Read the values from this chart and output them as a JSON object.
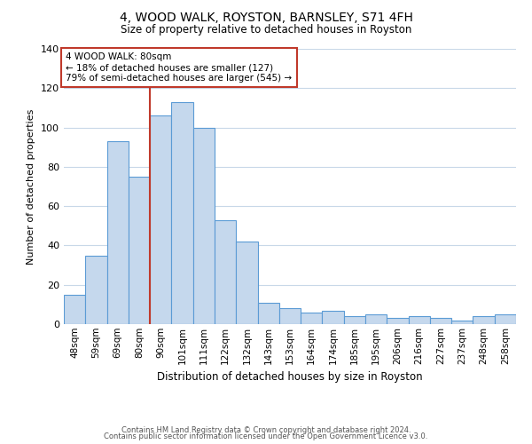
{
  "title": "4, WOOD WALK, ROYSTON, BARNSLEY, S71 4FH",
  "subtitle": "Size of property relative to detached houses in Royston",
  "xlabel": "Distribution of detached houses by size in Royston",
  "ylabel": "Number of detached properties",
  "bin_labels": [
    "48sqm",
    "59sqm",
    "69sqm",
    "80sqm",
    "90sqm",
    "101sqm",
    "111sqm",
    "122sqm",
    "132sqm",
    "143sqm",
    "153sqm",
    "164sqm",
    "174sqm",
    "185sqm",
    "195sqm",
    "206sqm",
    "216sqm",
    "227sqm",
    "237sqm",
    "248sqm",
    "258sqm"
  ],
  "bar_heights": [
    15,
    35,
    93,
    75,
    106,
    113,
    100,
    53,
    42,
    11,
    8,
    6,
    7,
    4,
    5,
    3,
    4,
    3,
    2,
    4,
    5
  ],
  "bar_color": "#c5d8ed",
  "bar_edge_color": "#5b9bd5",
  "vline_color": "#c0392b",
  "ylim": [
    0,
    140
  ],
  "yticks": [
    0,
    20,
    40,
    60,
    80,
    100,
    120,
    140
  ],
  "annotation_line1": "4 WOOD WALK: 80sqm",
  "annotation_line2": "← 18% of detached houses are smaller (127)",
  "annotation_line3": "79% of semi-detached houses are larger (545) →",
  "annotation_box_color": "#c0392b",
  "footer_line1": "Contains HM Land Registry data © Crown copyright and database right 2024.",
  "footer_line2": "Contains public sector information licensed under the Open Government Licence v3.0.",
  "background_color": "#ffffff",
  "grid_color": "#c8d8e8"
}
